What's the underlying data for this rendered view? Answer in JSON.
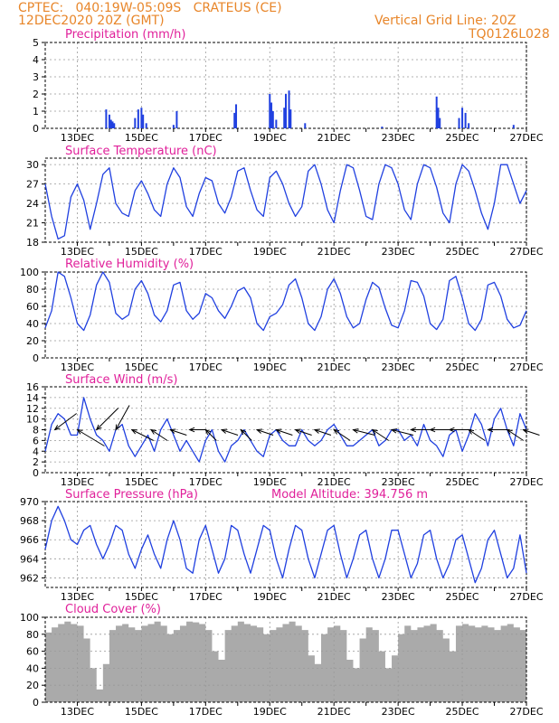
{
  "header": {
    "line1": "CPTEC:   040:19W-05:09S   CRATEUS (CE)",
    "line2": "12DEC2020 20Z (GMT)",
    "grid_note": "Vertical Grid Line: 20Z",
    "code": "TQ0126L028"
  },
  "colors": {
    "header": "#e8862a",
    "title": "#e0209a",
    "line": "#2040e0",
    "cloud": "#aaaaaa",
    "grid": "#999999"
  },
  "chart_data": [
    {
      "type": "bar",
      "title": "Precipitation (mm/h)",
      "x_ticks": [
        "13DEC",
        "15DEC",
        "17DEC",
        "19DEC",
        "21DEC",
        "23DEC",
        "25DEC",
        "27DEC"
      ],
      "xlim_days": [
        12.0,
        27.0
      ],
      "ylim": [
        0,
        5
      ],
      "y_ticks": [
        0,
        1,
        2,
        3,
        4,
        5
      ],
      "spikes": [
        {
          "day": 13.9,
          "value": 1.1
        },
        {
          "day": 14.0,
          "value": 0.8
        },
        {
          "day": 14.05,
          "value": 0.5
        },
        {
          "day": 14.1,
          "value": 0.4
        },
        {
          "day": 14.15,
          "value": 0.3
        },
        {
          "day": 14.8,
          "value": 0.6
        },
        {
          "day": 14.9,
          "value": 1.1
        },
        {
          "day": 15.0,
          "value": 1.2
        },
        {
          "day": 15.05,
          "value": 0.8
        },
        {
          "day": 15.15,
          "value": 0.3
        },
        {
          "day": 16.0,
          "value": 0.2
        },
        {
          "day": 16.1,
          "value": 1.0
        },
        {
          "day": 17.9,
          "value": 0.9
        },
        {
          "day": 17.95,
          "value": 1.4
        },
        {
          "day": 19.0,
          "value": 2.0
        },
        {
          "day": 19.05,
          "value": 1.5
        },
        {
          "day": 19.1,
          "value": 1.0
        },
        {
          "day": 19.2,
          "value": 0.5
        },
        {
          "day": 19.45,
          "value": 1.2
        },
        {
          "day": 19.5,
          "value": 2.0
        },
        {
          "day": 19.6,
          "value": 2.2
        },
        {
          "day": 19.65,
          "value": 1.1
        },
        {
          "day": 20.1,
          "value": 0.3
        },
        {
          "day": 22.5,
          "value": 0.1
        },
        {
          "day": 24.2,
          "value": 1.85
        },
        {
          "day": 24.25,
          "value": 1.2
        },
        {
          "day": 24.3,
          "value": 0.6
        },
        {
          "day": 24.9,
          "value": 0.6
        },
        {
          "day": 25.0,
          "value": 1.2
        },
        {
          "day": 25.1,
          "value": 0.9
        },
        {
          "day": 25.2,
          "value": 0.3
        },
        {
          "day": 26.6,
          "value": 0.2
        }
      ]
    },
    {
      "type": "line",
      "title": "Surface Temperature (nC)",
      "x_ticks": [
        "13DEC",
        "15DEC",
        "17DEC",
        "19DEC",
        "21DEC",
        "23DEC",
        "25DEC",
        "27DEC"
      ],
      "ylim": [
        18,
        31
      ],
      "y_ticks": [
        18,
        21,
        24,
        27,
        30
      ],
      "days": [
        12.0,
        12.2,
        12.4,
        12.6,
        12.8,
        13.0,
        13.2,
        13.4,
        13.6,
        13.8,
        14.0,
        14.2,
        14.4,
        14.6,
        14.8,
        15.0,
        15.2,
        15.4,
        15.6,
        15.8,
        16.0,
        16.2,
        16.4,
        16.6,
        16.8,
        17.0,
        17.2,
        17.4,
        17.6,
        17.8,
        18.0,
        18.2,
        18.4,
        18.6,
        18.8,
        19.0,
        19.2,
        19.4,
        19.6,
        19.8,
        20.0,
        20.2,
        20.4,
        20.6,
        20.8,
        21.0,
        21.2,
        21.4,
        21.6,
        21.8,
        22.0,
        22.2,
        22.4,
        22.6,
        22.8,
        23.0,
        23.2,
        23.4,
        23.6,
        23.8,
        24.0,
        24.2,
        24.4,
        24.6,
        24.8,
        25.0,
        25.2,
        25.4,
        25.6,
        25.8,
        26.0,
        26.2,
        26.4,
        26.6,
        26.8,
        27.0
      ],
      "values": [
        27,
        22,
        18.5,
        19,
        25,
        27,
        24.5,
        20,
        24,
        28.5,
        29.5,
        24,
        22.5,
        22,
        26,
        27.5,
        25.5,
        23,
        22,
        27,
        29.5,
        28,
        23.5,
        22,
        25.5,
        28,
        27.5,
        24,
        22.5,
        25,
        29,
        29.5,
        26,
        23,
        22,
        28,
        29,
        27,
        24,
        22,
        23.5,
        29,
        30,
        27,
        23,
        21,
        26,
        30,
        29.5,
        26,
        22,
        21.5,
        27,
        30,
        29.5,
        27,
        23,
        21.5,
        27,
        30,
        29.5,
        26.5,
        22.5,
        21,
        27,
        30,
        29,
        26,
        22.5,
        20,
        24,
        30,
        30,
        27,
        24,
        26
      ]
    },
    {
      "type": "line",
      "title": "Relative Humidity (%)",
      "x_ticks": [
        "13DEC",
        "15DEC",
        "17DEC",
        "19DEC",
        "21DEC",
        "23DEC",
        "25DEC",
        "27DEC"
      ],
      "ylim": [
        0,
        100
      ],
      "y_ticks": [
        0,
        20,
        40,
        60,
        80,
        100
      ],
      "days": [
        12.0,
        12.2,
        12.4,
        12.6,
        12.8,
        13.0,
        13.2,
        13.4,
        13.6,
        13.8,
        14.0,
        14.2,
        14.4,
        14.6,
        14.8,
        15.0,
        15.2,
        15.4,
        15.6,
        15.8,
        16.0,
        16.2,
        16.4,
        16.6,
        16.8,
        17.0,
        17.2,
        17.4,
        17.6,
        17.8,
        18.0,
        18.2,
        18.4,
        18.6,
        18.8,
        19.0,
        19.2,
        19.4,
        19.6,
        19.8,
        20.0,
        20.2,
        20.4,
        20.6,
        20.8,
        21.0,
        21.2,
        21.4,
        21.6,
        21.8,
        22.0,
        22.2,
        22.4,
        22.6,
        22.8,
        23.0,
        23.2,
        23.4,
        23.6,
        23.8,
        24.0,
        24.2,
        24.4,
        24.6,
        24.8,
        25.0,
        25.2,
        25.4,
        25.6,
        25.8,
        26.0,
        26.2,
        26.4,
        26.6,
        26.8,
        27.0
      ],
      "values": [
        35,
        55,
        100,
        95,
        70,
        40,
        32,
        50,
        85,
        100,
        88,
        52,
        45,
        50,
        80,
        90,
        75,
        50,
        42,
        55,
        85,
        88,
        55,
        45,
        52,
        75,
        70,
        55,
        46,
        60,
        78,
        82,
        70,
        40,
        32,
        48,
        52,
        62,
        85,
        92,
        70,
        40,
        32,
        48,
        80,
        92,
        75,
        48,
        35,
        40,
        68,
        88,
        82,
        58,
        38,
        35,
        55,
        90,
        88,
        72,
        40,
        33,
        45,
        90,
        95,
        70,
        40,
        32,
        45,
        85,
        88,
        72,
        45,
        35,
        38,
        55
      ]
    },
    {
      "type": "line",
      "title": "Surface Wind (m/s)",
      "x_ticks": [
        "13DEC",
        "15DEC",
        "17DEC",
        "19DEC",
        "21DEC",
        "23DEC",
        "25DEC",
        "27DEC"
      ],
      "ylim": [
        0,
        16
      ],
      "y_ticks": [
        0,
        2,
        4,
        6,
        8,
        10,
        12,
        14,
        16
      ],
      "days": [
        12.0,
        12.2,
        12.4,
        12.6,
        12.8,
        13.0,
        13.2,
        13.4,
        13.6,
        13.8,
        14.0,
        14.2,
        14.4,
        14.6,
        14.8,
        15.0,
        15.2,
        15.4,
        15.6,
        15.8,
        16.0,
        16.2,
        16.4,
        16.6,
        16.8,
        17.0,
        17.2,
        17.4,
        17.6,
        17.8,
        18.0,
        18.2,
        18.4,
        18.6,
        18.8,
        19.0,
        19.2,
        19.4,
        19.6,
        19.8,
        20.0,
        20.2,
        20.4,
        20.6,
        20.8,
        21.0,
        21.2,
        21.4,
        21.6,
        21.8,
        22.0,
        22.2,
        22.4,
        22.6,
        22.8,
        23.0,
        23.2,
        23.4,
        23.6,
        23.8,
        24.0,
        24.2,
        24.4,
        24.6,
        24.8,
        25.0,
        25.2,
        25.4,
        25.6,
        25.8,
        26.0,
        26.2,
        26.4,
        26.6,
        26.8,
        27.0
      ],
      "values": [
        4,
        9,
        11,
        10,
        7,
        7,
        14,
        10,
        7,
        6,
        4,
        8,
        9,
        5,
        3,
        5,
        7,
        4,
        8,
        10,
        7,
        4,
        6,
        4,
        2,
        6,
        8,
        4,
        2,
        5,
        6,
        8,
        6,
        4,
        3,
        7,
        8,
        6,
        5,
        5,
        8,
        6,
        5,
        6,
        8,
        9,
        7,
        5,
        5,
        6,
        7,
        8,
        5,
        6,
        8,
        8,
        6,
        7,
        5,
        9,
        6,
        5,
        3,
        7,
        8,
        4,
        7,
        11,
        9,
        5,
        10,
        12,
        8,
        5,
        11,
        8
      ],
      "wind_arrows": [
        {
          "day": 12.3,
          "dx": 4,
          "dy": -3
        },
        {
          "day": 13.0,
          "dx": 5,
          "dy": 3
        },
        {
          "day": 13.6,
          "dx": 4,
          "dy": -4
        },
        {
          "day": 14.2,
          "dx": 2.5,
          "dy": -4.5
        },
        {
          "day": 14.7,
          "dx": 4,
          "dy": 2
        },
        {
          "day": 15.3,
          "dx": 3,
          "dy": 2
        },
        {
          "day": 15.9,
          "dx": 3,
          "dy": 1
        },
        {
          "day": 16.5,
          "dx": 3,
          "dy": 0
        },
        {
          "day": 17.0,
          "dx": 2,
          "dy": 2
        },
        {
          "day": 17.5,
          "dx": 3,
          "dy": 1
        },
        {
          "day": 18.1,
          "dx": 2,
          "dy": 2
        },
        {
          "day": 18.6,
          "dx": 3,
          "dy": 1
        },
        {
          "day": 19.2,
          "dx": 3,
          "dy": 1
        },
        {
          "day": 19.8,
          "dx": 3,
          "dy": 1
        },
        {
          "day": 20.4,
          "dx": 3,
          "dy": 1
        },
        {
          "day": 21.0,
          "dx": 3,
          "dy": 2
        },
        {
          "day": 21.6,
          "dx": 4,
          "dy": 1
        },
        {
          "day": 22.2,
          "dx": 3,
          "dy": 2
        },
        {
          "day": 22.8,
          "dx": 4,
          "dy": 1
        },
        {
          "day": 23.4,
          "dx": 4,
          "dy": 0
        },
        {
          "day": 24.0,
          "dx": 4,
          "dy": 0
        },
        {
          "day": 24.6,
          "dx": 4,
          "dy": 0
        },
        {
          "day": 25.2,
          "dx": 3,
          "dy": 2
        },
        {
          "day": 25.8,
          "dx": 4,
          "dy": 0
        },
        {
          "day": 26.4,
          "dx": 3,
          "dy": 2
        },
        {
          "day": 26.9,
          "dx": 3,
          "dy": 1
        }
      ]
    },
    {
      "type": "line",
      "title": "Surface Pressure (hPa)",
      "annotation": "Model Altitude: 394.756  m",
      "x_ticks": [
        "13DEC",
        "15DEC",
        "17DEC",
        "19DEC",
        "21DEC",
        "23DEC",
        "25DEC",
        "27DEC"
      ],
      "ylim": [
        961,
        970
      ],
      "y_ticks": [
        962,
        964,
        966,
        968,
        970
      ],
      "days": [
        12.0,
        12.2,
        12.4,
        12.6,
        12.8,
        13.0,
        13.2,
        13.4,
        13.6,
        13.8,
        14.0,
        14.2,
        14.4,
        14.6,
        14.8,
        15.0,
        15.2,
        15.4,
        15.6,
        15.8,
        16.0,
        16.2,
        16.4,
        16.6,
        16.8,
        17.0,
        17.2,
        17.4,
        17.6,
        17.8,
        18.0,
        18.2,
        18.4,
        18.6,
        18.8,
        19.0,
        19.2,
        19.4,
        19.6,
        19.8,
        20.0,
        20.2,
        20.4,
        20.6,
        20.8,
        21.0,
        21.2,
        21.4,
        21.6,
        21.8,
        22.0,
        22.2,
        22.4,
        22.6,
        22.8,
        23.0,
        23.2,
        23.4,
        23.6,
        23.8,
        24.0,
        24.2,
        24.4,
        24.6,
        24.8,
        25.0,
        25.2,
        25.4,
        25.6,
        25.8,
        26.0,
        26.2,
        26.4,
        26.6,
        26.8,
        27.0
      ],
      "values": [
        965,
        968,
        969.5,
        968,
        966,
        965.5,
        967,
        967.5,
        965.5,
        964,
        965.5,
        967.5,
        967,
        964.5,
        963,
        965,
        966.5,
        964.5,
        963,
        966,
        968,
        966,
        963,
        962.5,
        966,
        967.5,
        965,
        962.5,
        964,
        967.5,
        967,
        964.5,
        962.5,
        965,
        967.5,
        967,
        964,
        962,
        965,
        967.5,
        967,
        964,
        962,
        964.5,
        967,
        967.5,
        964.5,
        962,
        964,
        966.5,
        967,
        964,
        962,
        964,
        967,
        967,
        964.5,
        962,
        963.5,
        966.5,
        967,
        964,
        962,
        963.5,
        966,
        966.5,
        964,
        961.5,
        963,
        966,
        967,
        964.5,
        962,
        963,
        966.5,
        962.5
      ]
    },
    {
      "type": "area",
      "title": "Cloud Cover (%)",
      "x_ticks": [
        "13DEC",
        "15DEC",
        "17DEC",
        "19DEC",
        "21DEC",
        "23DEC",
        "25DEC",
        "27DEC"
      ],
      "ylim": [
        0,
        100
      ],
      "y_ticks": [
        0,
        20,
        40,
        60,
        80,
        100
      ],
      "days": [
        12.0,
        12.2,
        12.4,
        12.6,
        12.8,
        13.0,
        13.2,
        13.4,
        13.6,
        13.8,
        14.0,
        14.2,
        14.4,
        14.6,
        14.8,
        15.0,
        15.2,
        15.4,
        15.6,
        15.8,
        16.0,
        16.2,
        16.4,
        16.6,
        16.8,
        17.0,
        17.2,
        17.4,
        17.6,
        17.8,
        18.0,
        18.2,
        18.4,
        18.6,
        18.8,
        19.0,
        19.2,
        19.4,
        19.6,
        19.8,
        20.0,
        20.2,
        20.4,
        20.6,
        20.8,
        21.0,
        21.2,
        21.4,
        21.6,
        21.8,
        22.0,
        22.2,
        22.4,
        22.6,
        22.8,
        23.0,
        23.2,
        23.4,
        23.6,
        23.8,
        24.0,
        24.2,
        24.4,
        24.6,
        24.8,
        25.0,
        25.2,
        25.4,
        25.6,
        25.8,
        26.0,
        26.2,
        26.4,
        26.6,
        26.8,
        27.0
      ],
      "values": [
        82,
        88,
        92,
        95,
        92,
        90,
        75,
        40,
        15,
        45,
        85,
        90,
        92,
        88,
        85,
        90,
        92,
        95,
        90,
        80,
        85,
        90,
        95,
        94,
        92,
        85,
        60,
        50,
        85,
        90,
        95,
        92,
        90,
        88,
        80,
        85,
        88,
        92,
        95,
        90,
        85,
        55,
        45,
        80,
        88,
        90,
        85,
        50,
        40,
        75,
        88,
        85,
        60,
        40,
        55,
        80,
        90,
        85,
        88,
        90,
        92,
        85,
        75,
        60,
        90,
        92,
        90,
        88,
        90,
        88,
        85,
        90,
        92,
        88,
        85,
        85
      ]
    }
  ]
}
